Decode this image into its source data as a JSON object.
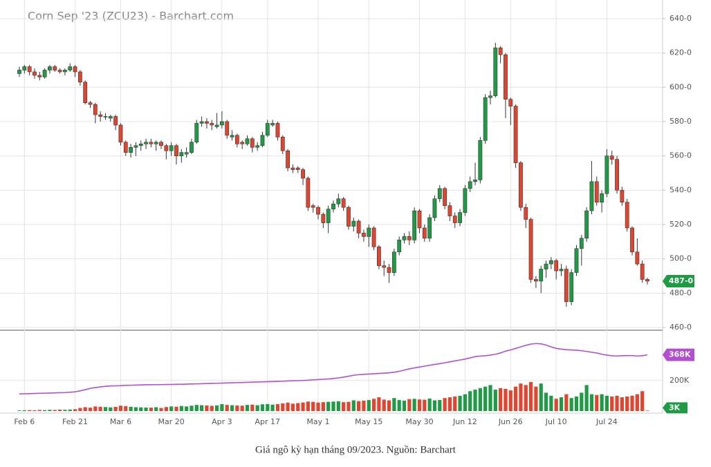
{
  "caption": "Giá ngô kỳ hạn tháng 09/2023. Nguồn: Barchart",
  "chart_data": [
    {
      "type": "candlestick",
      "title": "Corn Sep '23 (ZCU23) - Barchart.com",
      "categories": [
        null,
        "Feb 6",
        null,
        null,
        null,
        null,
        null,
        null,
        null,
        null,
        null,
        "Feb 21",
        null,
        null,
        null,
        null,
        null,
        null,
        null,
        null,
        "Mar 6",
        null,
        null,
        null,
        null,
        null,
        null,
        null,
        null,
        null,
        "Mar 20",
        null,
        null,
        null,
        null,
        null,
        null,
        null,
        null,
        null,
        "Apr 3",
        null,
        null,
        null,
        null,
        null,
        null,
        null,
        null,
        "Apr 17",
        null,
        null,
        null,
        null,
        null,
        null,
        null,
        null,
        null,
        "May 1",
        null,
        null,
        null,
        null,
        null,
        null,
        null,
        null,
        null,
        "May 15",
        null,
        null,
        null,
        null,
        null,
        null,
        null,
        null,
        null,
        "May 30",
        null,
        null,
        null,
        null,
        null,
        null,
        null,
        null,
        "Jun 12",
        null,
        null,
        null,
        null,
        null,
        null,
        null,
        null,
        "Jun 26",
        null,
        null,
        null,
        null,
        null,
        null,
        null,
        null,
        "Jul 10",
        null,
        null,
        null,
        null,
        null,
        null,
        null,
        null,
        null,
        "Jul 24",
        null,
        null,
        null,
        null,
        null,
        null,
        null,
        null
      ],
      "open": [
        608,
        610,
        612,
        609,
        607,
        606,
        610,
        612,
        610,
        609,
        610,
        612,
        609,
        603,
        591,
        590,
        584,
        583,
        582,
        583,
        578,
        568,
        562,
        565,
        566,
        567,
        568,
        567,
        568,
        566,
        563,
        566,
        560,
        561,
        562,
        568,
        579,
        580,
        579,
        577,
        578,
        580,
        571,
        572,
        568,
        567,
        570,
        565,
        566,
        572,
        578,
        579,
        571,
        563,
        553,
        553,
        552,
        547,
        531,
        530,
        526,
        521,
        529,
        532,
        535,
        530,
        519,
        522,
        515,
        513,
        518,
        507,
        496,
        495,
        492,
        504,
        511,
        513,
        511,
        528,
        518,
        512,
        524,
        535,
        541,
        531,
        525,
        521,
        527,
        541,
        545,
        546,
        569,
        594,
        595,
        623,
        619,
        593,
        589,
        556,
        530,
        523,
        488,
        487,
        494,
        497,
        499,
        493,
        494,
        475,
        492,
        506,
        512,
        528,
        545,
        533,
        538,
        560,
        558,
        540,
        533,
        518,
        504,
        497,
        488
      ],
      "high": [
        612,
        613,
        613,
        611,
        609,
        611,
        613,
        613,
        611,
        611,
        614,
        613,
        610,
        604,
        592,
        591,
        586,
        585,
        584,
        584,
        579,
        569,
        567,
        568,
        569,
        570,
        570,
        569,
        569,
        567,
        568,
        567,
        564,
        565,
        570,
        581,
        583,
        582,
        581,
        585,
        586,
        581,
        575,
        573,
        569,
        572,
        571,
        568,
        574,
        581,
        581,
        580,
        572,
        564,
        555,
        554,
        553,
        548,
        532,
        531,
        527,
        531,
        534,
        538,
        536,
        531,
        524,
        523,
        517,
        520,
        519,
        508,
        499,
        497,
        506,
        513,
        515,
        516,
        530,
        529,
        520,
        526,
        537,
        543,
        542,
        533,
        527,
        529,
        543,
        548,
        556,
        571,
        596,
        598,
        626,
        624,
        620,
        594,
        590,
        557,
        532,
        524,
        490,
        496,
        499,
        501,
        500,
        497,
        496,
        494,
        508,
        514,
        530,
        557,
        548,
        540,
        564,
        563,
        560,
        542,
        535,
        519,
        512,
        499,
        489
      ],
      "low": [
        606,
        608,
        607,
        605,
        604,
        605,
        608,
        609,
        608,
        607,
        609,
        606,
        601,
        590,
        588,
        579,
        580,
        581,
        580,
        575,
        566,
        560,
        559,
        560,
        563,
        564,
        565,
        563,
        564,
        558,
        560,
        555,
        556,
        559,
        561,
        567,
        577,
        576,
        575,
        576,
        576,
        570,
        569,
        565,
        564,
        566,
        562,
        563,
        565,
        571,
        577,
        569,
        561,
        551,
        550,
        550,
        543,
        528,
        527,
        523,
        518,
        515,
        527,
        530,
        528,
        517,
        516,
        512,
        510,
        507,
        505,
        494,
        490,
        486,
        490,
        502,
        509,
        508,
        509,
        515,
        510,
        510,
        522,
        533,
        529,
        522,
        518,
        519,
        525,
        539,
        543,
        544,
        567,
        590,
        594,
        614,
        582,
        578,
        553,
        528,
        518,
        486,
        483,
        480,
        489,
        494,
        488,
        490,
        472,
        473,
        490,
        496,
        510,
        526,
        531,
        527,
        536,
        555,
        538,
        531,
        516,
        502,
        496,
        486,
        485
      ],
      "close": [
        610,
        612,
        609,
        607,
        606,
        610,
        612,
        610,
        609,
        610,
        612,
        609,
        603,
        591,
        590,
        584,
        583,
        583,
        583,
        578,
        568,
        562,
        565,
        566,
        567,
        568,
        567,
        568,
        566,
        563,
        566,
        560,
        562,
        562,
        568,
        579,
        580,
        579,
        578,
        578,
        580,
        572,
        572,
        567,
        567,
        570,
        565,
        566,
        572,
        579,
        579,
        571,
        563,
        553,
        552,
        552,
        547,
        530,
        530,
        526,
        521,
        529,
        532,
        535,
        530,
        519,
        522,
        515,
        513,
        518,
        507,
        496,
        495,
        492,
        504,
        511,
        513,
        511,
        528,
        518,
        512,
        524,
        535,
        541,
        531,
        525,
        521,
        527,
        541,
        545,
        546,
        569,
        594,
        595,
        623,
        619,
        593,
        589,
        556,
        530,
        523,
        488,
        487,
        494,
        497,
        499,
        493,
        494,
        475,
        492,
        506,
        512,
        528,
        545,
        533,
        538,
        560,
        558,
        540,
        533,
        518,
        504,
        497,
        488,
        487
      ],
      "ylim": [
        460,
        640
      ],
      "yticks": [
        {
          "value": 460,
          "label": "460-0"
        },
        {
          "value": 480,
          "label": "480-0"
        },
        {
          "value": 500,
          "label": "500-0"
        },
        {
          "value": 520,
          "label": "520-0"
        },
        {
          "value": 540,
          "label": "540-0"
        },
        {
          "value": 560,
          "label": "560-0"
        },
        {
          "value": 580,
          "label": "580-0"
        },
        {
          "value": 600,
          "label": "600-0"
        },
        {
          "value": 620,
          "label": "620-0"
        },
        {
          "value": 640,
          "label": "640-0"
        }
      ],
      "up_color": "#1f9b45",
      "down_color": "#e2452f",
      "grid": true,
      "last_price": {
        "value": 487,
        "label": "487-0"
      }
    },
    {
      "type": "bar",
      "volume": [
        4000,
        5000,
        6000,
        5000,
        7000,
        6000,
        8000,
        7000,
        9000,
        8000,
        10000,
        12000,
        20000,
        25000,
        22000,
        30000,
        28000,
        26000,
        24000,
        27000,
        35000,
        32000,
        28000,
        25000,
        24000,
        23000,
        22000,
        25000,
        20000,
        26000,
        30000,
        28000,
        33000,
        30000,
        35000,
        40000,
        38000,
        36000,
        34000,
        37000,
        45000,
        40000,
        38000,
        36000,
        35000,
        40000,
        42000,
        38000,
        44000,
        46000,
        42000,
        45000,
        50000,
        55000,
        48000,
        52000,
        56000,
        62000,
        60000,
        55000,
        58000,
        60000,
        62000,
        64000,
        58000,
        60000,
        70000,
        65000,
        68000,
        72000,
        80000,
        90000,
        75000,
        70000,
        85000,
        72000,
        68000,
        78000,
        80000,
        76000,
        74000,
        82000,
        70000,
        72000,
        85000,
        90000,
        95000,
        100000,
        110000,
        130000,
        140000,
        150000,
        160000,
        170000,
        140000,
        150000,
        145000,
        135000,
        160000,
        180000,
        170000,
        190000,
        160000,
        180000,
        120000,
        100000,
        80000,
        90000,
        110000,
        85000,
        95000,
        120000,
        170000,
        110000,
        105000,
        110000,
        100000,
        95000,
        100000,
        90000,
        95000,
        100000,
        110000,
        130000,
        3000
      ],
      "average": [
        112000,
        113000,
        114000,
        115000,
        116000,
        117000,
        118000,
        119000,
        120000,
        121000,
        123000,
        126000,
        132000,
        140000,
        148000,
        154000,
        158000,
        162000,
        164000,
        165000,
        166000,
        168000,
        169000,
        170000,
        171000,
        172000,
        172000,
        173000,
        173000,
        174000,
        174000,
        175000,
        175000,
        176000,
        177000,
        178000,
        179000,
        180000,
        181000,
        182000,
        183000,
        184000,
        185000,
        186000,
        187000,
        188000,
        189000,
        190000,
        191000,
        192000,
        193000,
        194000,
        195000,
        197000,
        198000,
        199000,
        200000,
        202000,
        204000,
        206000,
        208000,
        210000,
        213000,
        217000,
        222000,
        228000,
        234000,
        238000,
        240000,
        242000,
        244000,
        246000,
        248000,
        250000,
        254000,
        260000,
        268000,
        276000,
        282000,
        288000,
        294000,
        300000,
        305000,
        310000,
        316000,
        322000,
        328000,
        334000,
        340000,
        348000,
        356000,
        360000,
        362000,
        366000,
        372000,
        380000,
        392000,
        400000,
        410000,
        420000,
        430000,
        438000,
        442000,
        440000,
        432000,
        420000,
        410000,
        405000,
        402000,
        400000,
        398000,
        395000,
        390000,
        385000,
        380000,
        372000,
        366000,
        362000,
        360000,
        362000,
        363000,
        363000,
        360000,
        362000,
        368000
      ],
      "average_color": "#b24fd0",
      "ylim": [
        0,
        520000
      ],
      "yticks": [
        {
          "value": 200000,
          "label": "200K"
        }
      ],
      "grid": true,
      "last_volume": {
        "value": 3000,
        "label": "3K"
      },
      "last_average": {
        "value": 368000,
        "label": "368K"
      }
    }
  ]
}
